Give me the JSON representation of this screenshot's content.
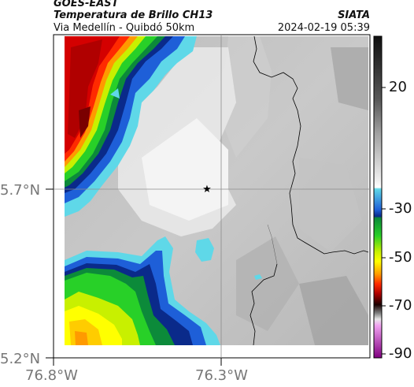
{
  "header": {
    "satellite": "GOES-EAST",
    "product": "Temperatura de Brillo CH13",
    "subtitle": "Via Medellín - Quibdó 50km",
    "organization": "SIATA",
    "timestamp": "2024-02-19 05:39"
  },
  "axes": {
    "lon_ticks": [
      "76.8°W",
      "76.3°W"
    ],
    "lat_ticks": [
      "5.7°N",
      "5.2°N"
    ]
  },
  "colorbar": {
    "labels": [
      "20",
      "-30",
      "-50",
      "-70",
      "-90"
    ],
    "stops": [
      {
        "value": 45,
        "color": "#101010"
      },
      {
        "value": 20,
        "color": "#8a8a8a"
      },
      {
        "value": -10,
        "color": "#f4f4f4"
      },
      {
        "value": -20,
        "color": "#ffffff"
      },
      {
        "value": -21,
        "color": "#5fd8e8"
      },
      {
        "value": -26,
        "color": "#1e5fd8"
      },
      {
        "value": -29,
        "color": "#0a2a8a"
      },
      {
        "value": -31,
        "color": "#0c8a3a"
      },
      {
        "value": -36,
        "color": "#28d028"
      },
      {
        "value": -44,
        "color": "#c8f000"
      },
      {
        "value": -50,
        "color": "#ffff00"
      },
      {
        "value": -56,
        "color": "#ff9a00"
      },
      {
        "value": -62,
        "color": "#ff2a00"
      },
      {
        "value": -67,
        "color": "#b00000"
      },
      {
        "value": -72,
        "color": "#1a0000"
      },
      {
        "value": -76,
        "color": "#7a7a7a"
      },
      {
        "value": -79,
        "color": "#e8e8e8"
      },
      {
        "value": -82,
        "color": "#f0a0f0"
      },
      {
        "value": -92,
        "color": "#800080"
      }
    ]
  },
  "colors": {
    "background_gray": "#d4d4d4",
    "cloud_white": "#f2f2f2",
    "outline": "#000000",
    "gridline": "#8c8c8c"
  },
  "marker": {
    "symbol": "star",
    "label": ""
  }
}
